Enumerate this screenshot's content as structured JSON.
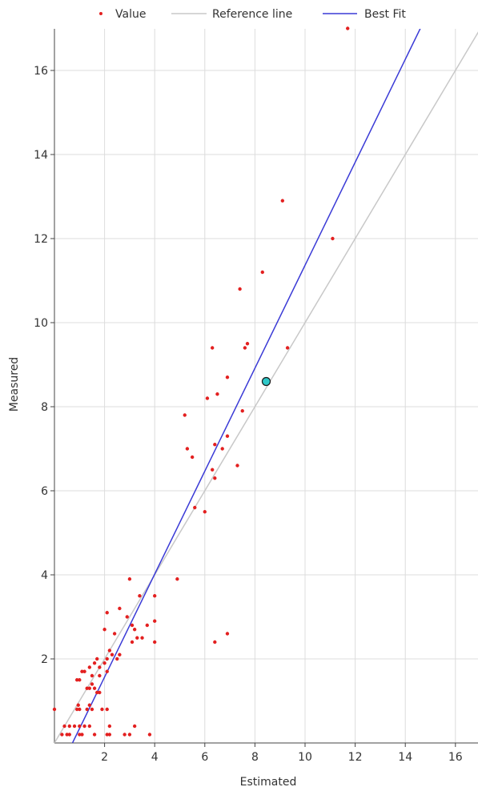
{
  "chart_data": {
    "type": "scatter",
    "title": "",
    "xlabel": "Estimated",
    "ylabel": "Measured",
    "xlim": [
      0,
      17
    ],
    "ylim": [
      0,
      17
    ],
    "x_ticks": [
      2,
      4,
      6,
      8,
      10,
      12,
      14,
      16
    ],
    "y_ticks": [
      2,
      4,
      6,
      8,
      10,
      12,
      14,
      16
    ],
    "grid": true,
    "legend_position": "top",
    "legend": [
      {
        "label": "Value",
        "kind": "marker",
        "color": "#e32020"
      },
      {
        "label": "Reference line",
        "kind": "line",
        "color": "#c8c8c8"
      },
      {
        "label": "Best Fit",
        "kind": "line",
        "color": "#3a3ad6"
      }
    ],
    "reference_line": {
      "x": [
        0,
        17
      ],
      "y": [
        0,
        17
      ]
    },
    "best_fit": {
      "x": [
        0.72,
        14.6
      ],
      "y": [
        0,
        17
      ]
    },
    "highlight_point": {
      "x": 8.45,
      "y": 8.6,
      "fill": "#2ec8c8",
      "stroke": "#1a1a1a"
    },
    "series": [
      {
        "name": "Value",
        "color": "#e32020",
        "points": [
          [
            11.7,
            17.0
          ],
          [
            9.1,
            12.9
          ],
          [
            11.1,
            12.0
          ],
          [
            8.3,
            11.2
          ],
          [
            7.4,
            10.8
          ],
          [
            6.3,
            9.4
          ],
          [
            7.6,
            9.4
          ],
          [
            7.7,
            9.5
          ],
          [
            9.3,
            9.4
          ],
          [
            6.9,
            8.7
          ],
          [
            6.1,
            8.2
          ],
          [
            6.5,
            8.3
          ],
          [
            7.5,
            7.9
          ],
          [
            5.2,
            7.8
          ],
          [
            6.9,
            7.3
          ],
          [
            6.4,
            7.1
          ],
          [
            5.3,
            7.0
          ],
          [
            6.7,
            7.0
          ],
          [
            5.5,
            6.8
          ],
          [
            7.3,
            6.6
          ],
          [
            6.3,
            6.5
          ],
          [
            6.4,
            6.3
          ],
          [
            5.6,
            5.6
          ],
          [
            6.0,
            5.5
          ],
          [
            3.0,
            3.9
          ],
          [
            4.9,
            3.9
          ],
          [
            3.4,
            3.5
          ],
          [
            4.0,
            3.5
          ],
          [
            2.6,
            3.2
          ],
          [
            2.1,
            3.1
          ],
          [
            2.9,
            3.0
          ],
          [
            4.0,
            2.9
          ],
          [
            3.1,
            2.8
          ],
          [
            3.7,
            2.8
          ],
          [
            2.0,
            2.7
          ],
          [
            3.2,
            2.7
          ],
          [
            6.9,
            2.6
          ],
          [
            2.4,
            2.6
          ],
          [
            3.3,
            2.5
          ],
          [
            3.5,
            2.5
          ],
          [
            4.0,
            2.4
          ],
          [
            6.4,
            2.4
          ],
          [
            3.1,
            2.4
          ],
          [
            2.2,
            2.2
          ],
          [
            2.6,
            2.1
          ],
          [
            2.3,
            2.1
          ],
          [
            2.5,
            2.0
          ],
          [
            2.1,
            2.0
          ],
          [
            1.7,
            2.0
          ],
          [
            1.6,
            1.9
          ],
          [
            2.0,
            1.9
          ],
          [
            1.4,
            1.8
          ],
          [
            1.8,
            1.8
          ],
          [
            2.1,
            1.7
          ],
          [
            1.1,
            1.7
          ],
          [
            1.2,
            1.7
          ],
          [
            1.5,
            1.6
          ],
          [
            1.8,
            1.6
          ],
          [
            0.9,
            1.5
          ],
          [
            1.0,
            1.5
          ],
          [
            1.5,
            1.4
          ],
          [
            1.6,
            1.3
          ],
          [
            1.3,
            1.3
          ],
          [
            1.8,
            1.2
          ],
          [
            1.7,
            1.2
          ],
          [
            1.4,
            1.3
          ],
          [
            0.0,
            0.8
          ],
          [
            0.9,
            0.8
          ],
          [
            1.0,
            0.8
          ],
          [
            1.3,
            0.8
          ],
          [
            1.5,
            0.8
          ],
          [
            1.9,
            0.8
          ],
          [
            2.1,
            0.8
          ],
          [
            1.4,
            0.9
          ],
          [
            0.95,
            0.9
          ],
          [
            0.4,
            0.4
          ],
          [
            0.6,
            0.4
          ],
          [
            0.8,
            0.4
          ],
          [
            1.0,
            0.4
          ],
          [
            1.2,
            0.4
          ],
          [
            1.4,
            0.4
          ],
          [
            2.2,
            0.4
          ],
          [
            3.2,
            0.4
          ],
          [
            0.3,
            0.2
          ],
          [
            0.5,
            0.2
          ],
          [
            0.6,
            0.2
          ],
          [
            1.0,
            0.2
          ],
          [
            1.1,
            0.2
          ],
          [
            1.6,
            0.2
          ],
          [
            2.1,
            0.2
          ],
          [
            2.2,
            0.2
          ],
          [
            2.8,
            0.2
          ],
          [
            3.0,
            0.2
          ],
          [
            3.8,
            0.2
          ]
        ]
      }
    ]
  }
}
